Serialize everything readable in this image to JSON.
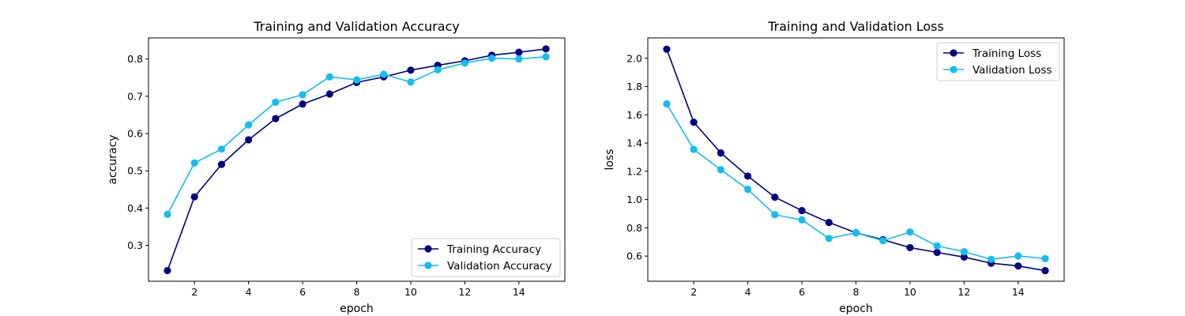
{
  "chart_data": [
    {
      "type": "line",
      "title": "Training and Validation Accuracy",
      "xlabel": "epoch",
      "ylabel": "accuracy",
      "xlim": [
        0.3,
        15.7
      ],
      "ylim": [
        0.2035,
        0.8565
      ],
      "xticks": [
        2,
        4,
        6,
        8,
        10,
        12,
        14
      ],
      "yticks": [
        0.3,
        0.4,
        0.5,
        0.6,
        0.7,
        0.8
      ],
      "xtick_labels": [
        "2",
        "4",
        "6",
        "8",
        "10",
        "12",
        "14"
      ],
      "ytick_labels": [
        "0.3",
        "0.4",
        "0.5",
        "0.6",
        "0.7",
        "0.8"
      ],
      "legend_position": "lower-right",
      "grid": false,
      "x": [
        1,
        2,
        3,
        4,
        5,
        6,
        7,
        8,
        9,
        10,
        11,
        12,
        13,
        14,
        15
      ],
      "series": [
        {
          "name": "Training Accuracy",
          "color": "#000080",
          "values": [
            0.232,
            0.43,
            0.517,
            0.583,
            0.64,
            0.679,
            0.706,
            0.737,
            0.752,
            0.77,
            0.783,
            0.795,
            0.81,
            0.818,
            0.827
          ]
        },
        {
          "name": "Validation Accuracy",
          "color": "#12bdf0",
          "values": [
            0.383,
            0.521,
            0.558,
            0.623,
            0.684,
            0.704,
            0.752,
            0.744,
            0.759,
            0.738,
            0.771,
            0.789,
            0.802,
            0.8,
            0.806
          ]
        }
      ]
    },
    {
      "type": "line",
      "title": "Training and Validation Loss",
      "xlabel": "epoch",
      "ylabel": "loss",
      "xlim": [
        0.3,
        15.7
      ],
      "ylim": [
        0.422,
        2.144
      ],
      "xticks": [
        2,
        4,
        6,
        8,
        10,
        12,
        14
      ],
      "yticks": [
        0.6,
        0.8,
        1.0,
        1.2,
        1.4,
        1.6,
        1.8,
        2.0
      ],
      "xtick_labels": [
        "2",
        "4",
        "6",
        "8",
        "10",
        "12",
        "14"
      ],
      "ytick_labels": [
        "0.6",
        "0.8",
        "1.0",
        "1.2",
        "1.4",
        "1.6",
        "1.8",
        "2.0"
      ],
      "legend_position": "upper-right",
      "grid": false,
      "x": [
        1,
        2,
        3,
        4,
        5,
        6,
        7,
        8,
        9,
        10,
        11,
        12,
        13,
        14,
        15
      ],
      "series": [
        {
          "name": "Training Loss",
          "color": "#000080",
          "values": [
            2.064,
            1.547,
            1.33,
            1.166,
            1.017,
            0.922,
            0.838,
            0.765,
            0.716,
            0.66,
            0.626,
            0.593,
            0.55,
            0.53,
            0.497
          ]
        },
        {
          "name": "Validation Loss",
          "color": "#12bdf0",
          "values": [
            1.677,
            1.355,
            1.211,
            1.073,
            0.893,
            0.856,
            0.725,
            0.765,
            0.709,
            0.77,
            0.672,
            0.631,
            0.577,
            0.601,
            0.582
          ]
        }
      ]
    }
  ]
}
